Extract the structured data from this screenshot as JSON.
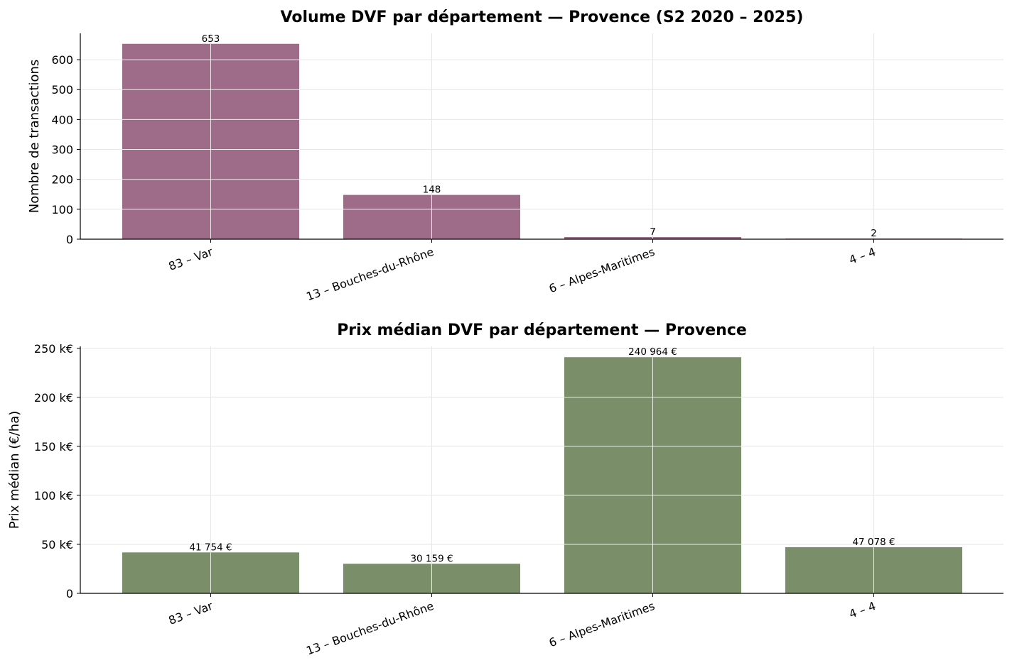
{
  "chart_data": [
    {
      "type": "bar",
      "title": "Volume DVF par département — Provence (S2 2020 – 2025)",
      "ylabel": "Nombre de transactions",
      "xlabel": "",
      "categories": [
        "83 – Var",
        "13 – Bouches-du-Rhône",
        "6 – Alpes-Maritimes",
        "4 – 4"
      ],
      "values": [
        653,
        148,
        7,
        2
      ],
      "data_labels": [
        "653",
        "148",
        "7",
        "2"
      ],
      "ylim": [
        0,
        688
      ],
      "yticks": [
        0,
        100,
        200,
        300,
        400,
        500,
        600
      ],
      "ytick_labels": [
        "0",
        "100",
        "200",
        "300",
        "400",
        "500",
        "600"
      ],
      "bar_color": "#9e6b89",
      "grid": true
    },
    {
      "type": "bar",
      "title": "Prix médian DVF par département — Provence",
      "ylabel": "Prix médian (€/ha)",
      "xlabel": "",
      "categories": [
        "83 – Var",
        "13 – Bouches-du-Rhône",
        "6 – Alpes-Maritimes",
        "4 – 4"
      ],
      "values": [
        41754,
        30159,
        240964,
        47078
      ],
      "data_labels": [
        "41 754 €",
        "30 159 €",
        "240 964 €",
        "47 078 €"
      ],
      "ylim": [
        0,
        252000
      ],
      "yticks": [
        0,
        50000,
        100000,
        150000,
        200000,
        250000
      ],
      "ytick_labels": [
        "0",
        "50 k€",
        "100 k€",
        "150 k€",
        "200 k€",
        "250 k€"
      ],
      "bar_color": "#7a8e69",
      "grid": true
    }
  ]
}
